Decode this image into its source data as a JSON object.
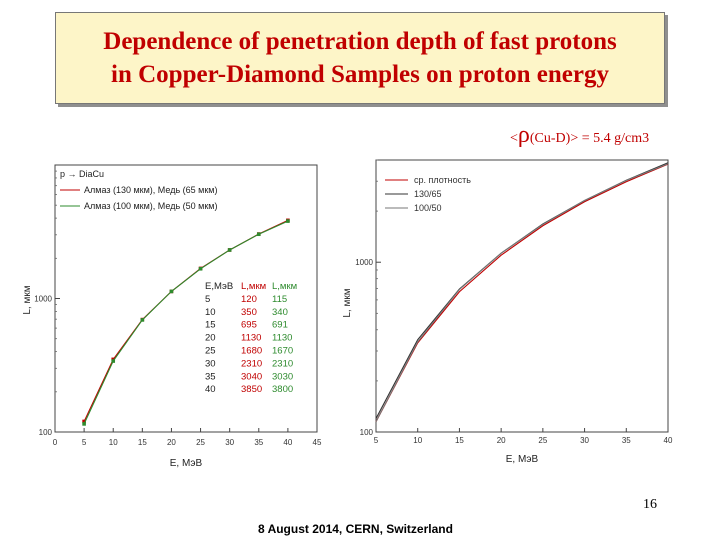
{
  "title_line1": "Dependence of penetration depth of fast protons",
  "title_line2": "in Copper-Diamond Samples on proton energy",
  "density_lt": "<",
  "density_rho": "ρ",
  "density_rest": "(Cu-D)> = 5.4 g/cm3",
  "density_comma": ",",
  "slide_number": "16",
  "footer": "8 August 2014, CERN, Switzerland",
  "colors": {
    "title_text": "#c00000",
    "title_bg": "#fdf5c8",
    "red_series": "#c00000",
    "green_series": "#2e8b2e",
    "table_red": "#c00000",
    "table_green": "#2e8b2e"
  },
  "chart_data": [
    {
      "type": "line",
      "xscale": "linear",
      "yscale": "log",
      "xlim": [
        0,
        45
      ],
      "ylim": [
        100,
        10000
      ],
      "xlabel": "E, МэВ",
      "ylabel": "L, мкм",
      "x_ticks": [
        "0",
        "5",
        "10",
        "15",
        "20",
        "25",
        "30",
        "35",
        "40",
        "45"
      ],
      "y_ticks": [
        "100",
        "1000"
      ],
      "legend_title": "p → DiaCu",
      "grid": false,
      "legend_position": "top-left",
      "series": [
        {
          "name": "Алмаз (130 мкм), Медь (65 мкм)",
          "color": "#c00000",
          "x": [
            5,
            10,
            15,
            20,
            25,
            30,
            35,
            40
          ],
          "y": [
            120,
            350,
            695,
            1130,
            1680,
            2310,
            3040,
            3850
          ]
        },
        {
          "name": "Алмаз (100 мкм), Медь (50 мкм)",
          "color": "#2e8b2e",
          "x": [
            5,
            10,
            15,
            20,
            25,
            30,
            35,
            40
          ],
          "y": [
            115,
            340,
            691,
            1130,
            1670,
            2310,
            3030,
            3800
          ]
        }
      ],
      "table": {
        "headers": [
          "E,МэВ",
          "L,мкм",
          "L,мкм"
        ],
        "rows": [
          [
            "5",
            "120",
            "115"
          ],
          [
            "10",
            "350",
            "340"
          ],
          [
            "15",
            "695",
            "691"
          ],
          [
            "20",
            "1130",
            "1130"
          ],
          [
            "25",
            "1680",
            "1670"
          ],
          [
            "30",
            "2310",
            "2310"
          ],
          [
            "35",
            "3040",
            "3030"
          ],
          [
            "40",
            "3850",
            "3800"
          ]
        ]
      }
    },
    {
      "type": "line",
      "xscale": "linear",
      "yscale": "log",
      "xlim": [
        5,
        40
      ],
      "ylim": [
        100,
        4000
      ],
      "xlabel": "E, МэВ",
      "ylabel": "L, мкм",
      "x_ticks": [
        "5",
        "10",
        "15",
        "20",
        "25",
        "30",
        "35",
        "40"
      ],
      "y_ticks": [
        "100",
        "1000"
      ],
      "grid": false,
      "legend_position": "top-left",
      "series": [
        {
          "name": "ср. плотность",
          "color": "#c00000",
          "x": [
            5,
            10,
            15,
            20,
            25,
            30,
            35,
            40
          ],
          "y": [
            115,
            335,
            670,
            1100,
            1640,
            2270,
            2980,
            3780
          ]
        },
        {
          "name": "130/65",
          "color": "#333333",
          "x": [
            5,
            10,
            15,
            20,
            25,
            30,
            35,
            40
          ],
          "y": [
            120,
            350,
            695,
            1130,
            1680,
            2310,
            3040,
            3850
          ]
        },
        {
          "name": "100/50",
          "color": "#777777",
          "x": [
            5,
            10,
            15,
            20,
            25,
            30,
            35,
            40
          ],
          "y": [
            115,
            340,
            691,
            1130,
            1670,
            2310,
            3030,
            3800
          ]
        }
      ]
    }
  ]
}
